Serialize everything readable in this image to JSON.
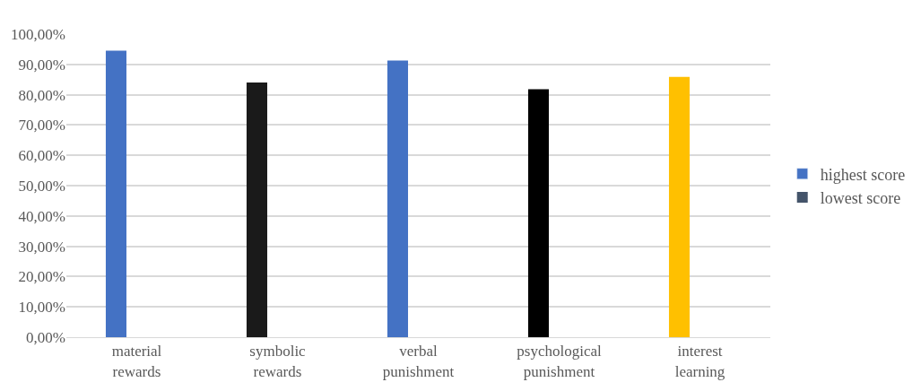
{
  "chart_data": {
    "type": "bar",
    "categories": [
      "material\nrewards",
      "symbolic\nrewards",
      "verbal\npunishment",
      "psychological\npunishment",
      "interest\nlearning"
    ],
    "series": [
      {
        "name": "highest score",
        "color": "#4472c4",
        "colors": [
          "#4472c4",
          "#1a1a1a",
          "#4472c4",
          "#000000",
          "#ffc000"
        ],
        "values": [
          94.5,
          84.0,
          91.3,
          81.8,
          85.9
        ]
      },
      {
        "name": "lowest score",
        "color": "#44546a",
        "values": [
          null,
          null,
          null,
          null,
          null
        ]
      }
    ],
    "ylim": [
      0,
      100
    ],
    "yticks": [
      {
        "value": 0,
        "label": "0,00%"
      },
      {
        "value": 10,
        "label": "10,00%"
      },
      {
        "value": 20,
        "label": "20,00%"
      },
      {
        "value": 30,
        "label": "30,00%"
      },
      {
        "value": 40,
        "label": "40,00%"
      },
      {
        "value": 50,
        "label": "50,00%"
      },
      {
        "value": 60,
        "label": "60,00%"
      },
      {
        "value": 70,
        "label": "70,00%"
      },
      {
        "value": 80,
        "label": "80,00%"
      },
      {
        "value": 90,
        "label": "90,00%"
      },
      {
        "value": 100,
        "label": "100,00%"
      }
    ],
    "grid": "y",
    "legend": "right"
  }
}
